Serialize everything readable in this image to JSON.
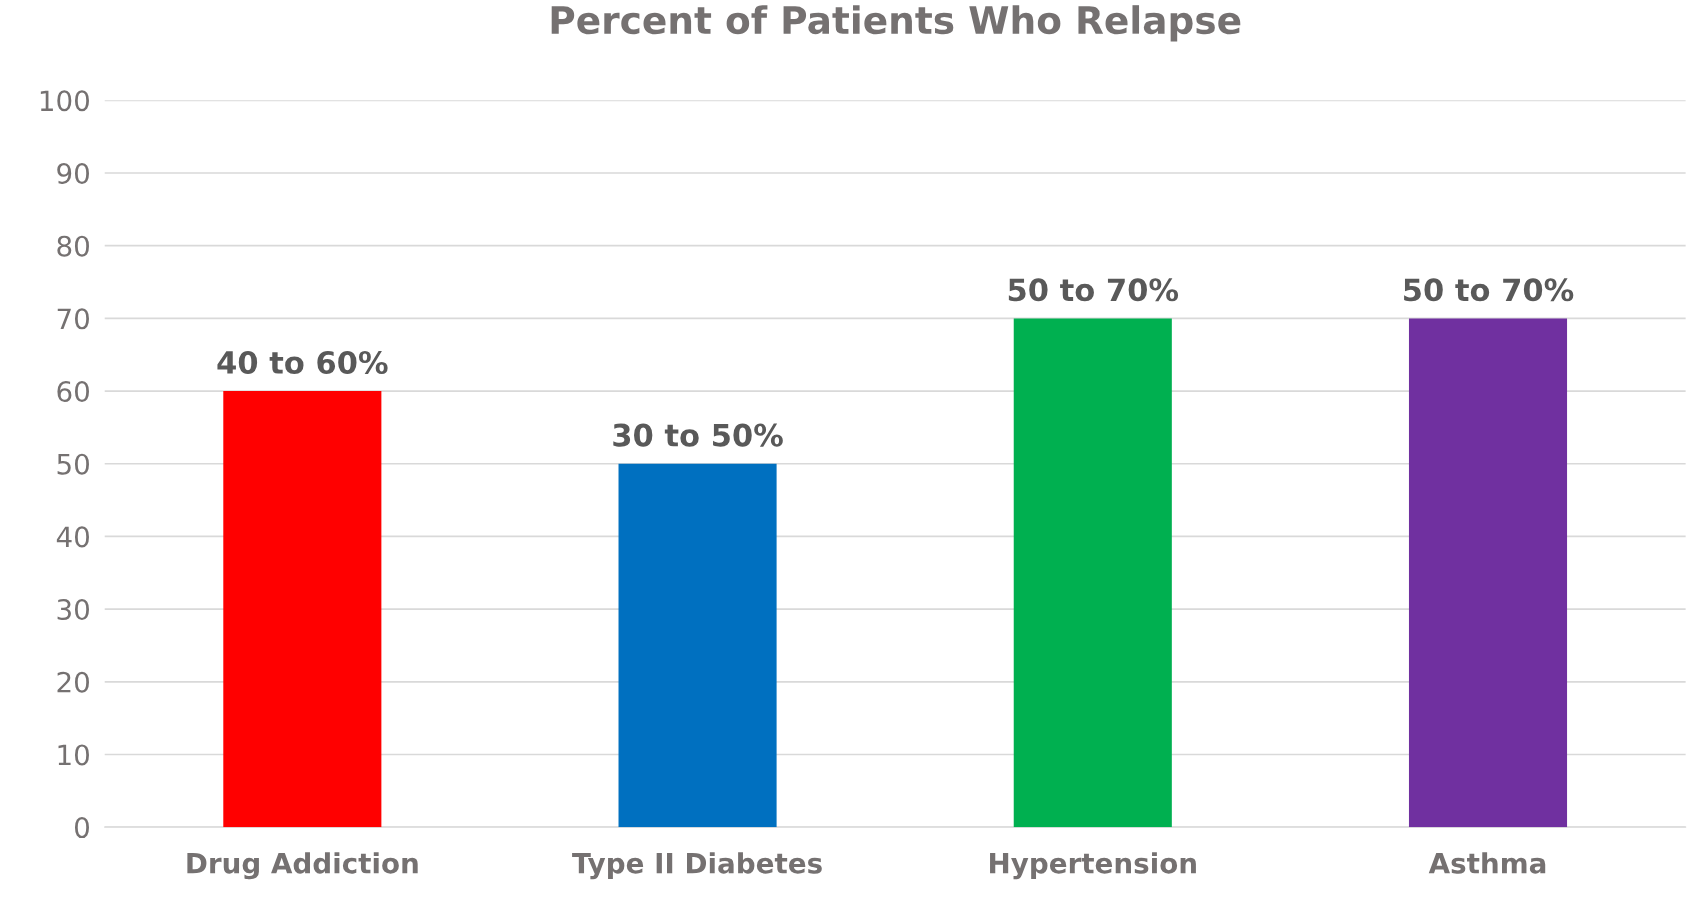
{
  "chart_data": {
    "type": "bar",
    "title": "Percent of Patients Who Relapse",
    "categories": [
      "Drug Addiction",
      "Type II Diabetes",
      "Hypertension",
      "Asthma"
    ],
    "values": [
      60,
      50,
      70,
      70
    ],
    "colors": [
      "#ff0000",
      "#0070c0",
      "#00b050",
      "#7030a0"
    ],
    "value_labels": [
      "40 to 60%",
      "30 to 50%",
      "50 to 70%",
      "50 to 70%"
    ],
    "ylim": [
      0,
      100
    ],
    "yticks": [
      0,
      10,
      20,
      30,
      40,
      50,
      60,
      70,
      80,
      90,
      100
    ],
    "grid": "y",
    "legend": false
  }
}
